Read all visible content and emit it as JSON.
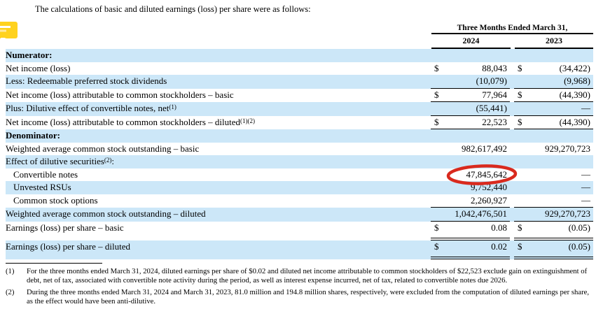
{
  "page": {
    "intro": "The calculations of basic and diluted earnings (loss) per share were as follows:"
  },
  "colors": {
    "row_highlight": "#cce7f8",
    "annotation_red": "#d92a1e",
    "comment_icon_yellow": "#ffd21e",
    "comment_icon_pale": "#ffe9a0"
  },
  "table": {
    "header": {
      "period_label": "Three Months Ended March 31,",
      "col_2024": "2024",
      "col_2023": "2023"
    },
    "rows": [
      {
        "label": "Numerator:",
        "bold": true,
        "bg": "blue"
      },
      {
        "label": "Net income (loss)",
        "bg": "white",
        "d2024": "$",
        "v2024": "88,043",
        "d2023": "$",
        "v2023": "(34,422)"
      },
      {
        "label": "Less: Redeemable preferred stock dividends",
        "bg": "blue",
        "v2024": "(10,079)",
        "v2023": "(9,968)",
        "border": "single"
      },
      {
        "label": "Net income (loss) attributable to common stockholders – basic",
        "bg": "white",
        "d2024": "$",
        "v2024": "77,964",
        "d2023": "$",
        "v2023": "(44,390)",
        "border": "single"
      },
      {
        "label": "Plus: Dilutive effect of convertible notes, net",
        "sup": "(1)",
        "bg": "blue",
        "v2024": "(55,441)",
        "v2023": "—",
        "border": "single"
      },
      {
        "label": "Net income (loss) attributable to common stockholders – diluted",
        "sup": "(1)(2)",
        "bg": "white",
        "d2024": "$",
        "v2024": "22,523",
        "d2023": "$",
        "v2023": "(44,390)",
        "border": "single"
      },
      {
        "label": "Denominator:",
        "bold": true,
        "bg": "blue"
      },
      {
        "label": "Weighted average common stock outstanding – basic",
        "bg": "white",
        "v2024": "982,617,492",
        "v2023": "929,270,723"
      },
      {
        "label": "Effect of dilutive securities",
        "sup": "(2)",
        "suffix": ":",
        "bg": "blue"
      },
      {
        "label": "Convertible notes",
        "indent": true,
        "bg": "white",
        "v2024": "47,845,642",
        "v2023": "—",
        "circled": true
      },
      {
        "label": "Unvested RSUs",
        "indent": true,
        "bg": "blue",
        "v2024": "9,752,440",
        "v2023": "—"
      },
      {
        "label": "Common stock options",
        "indent": true,
        "bg": "white",
        "v2024": "2,260,927",
        "v2023": "—",
        "border": "single"
      },
      {
        "label": "Weighted average common stock outstanding – diluted",
        "bg": "blue",
        "v2024": "1,042,476,501",
        "v2023": "929,270,723",
        "border": "single"
      },
      {
        "label": "Earnings (loss) per share – basic",
        "bg": "white",
        "d2024": "$",
        "v2024": "0.08",
        "d2023": "$",
        "v2023": "(0.05)",
        "border": "double",
        "tall": true
      },
      {
        "label": "Earnings (loss) per share – diluted",
        "bg": "blue",
        "d2024": "$",
        "v2024": "0.02",
        "d2023": "$",
        "v2023": "(0.05)",
        "border": "double",
        "tall": true
      }
    ]
  },
  "annotation": {
    "circled_value": "47,845,642"
  },
  "footnotes": [
    {
      "marker": "(1)",
      "text": "For the three months ended March 31, 2024, diluted earnings per share of $0.02 and diluted net income attributable to common stockholders of $22,523 exclude gain on extinguishment of debt, net of tax, associated with convertible note activity during the period, as well as interest expense incurred, net of tax, related to convertible notes due 2026."
    },
    {
      "marker": "(2)",
      "text": "During the three months ended March 31, 2024 and March 31, 2023, 81.0 million and 194.8 million shares, respectively, were excluded from the computation of diluted earnings per share, as the effect would have been anti-dilutive."
    }
  ]
}
